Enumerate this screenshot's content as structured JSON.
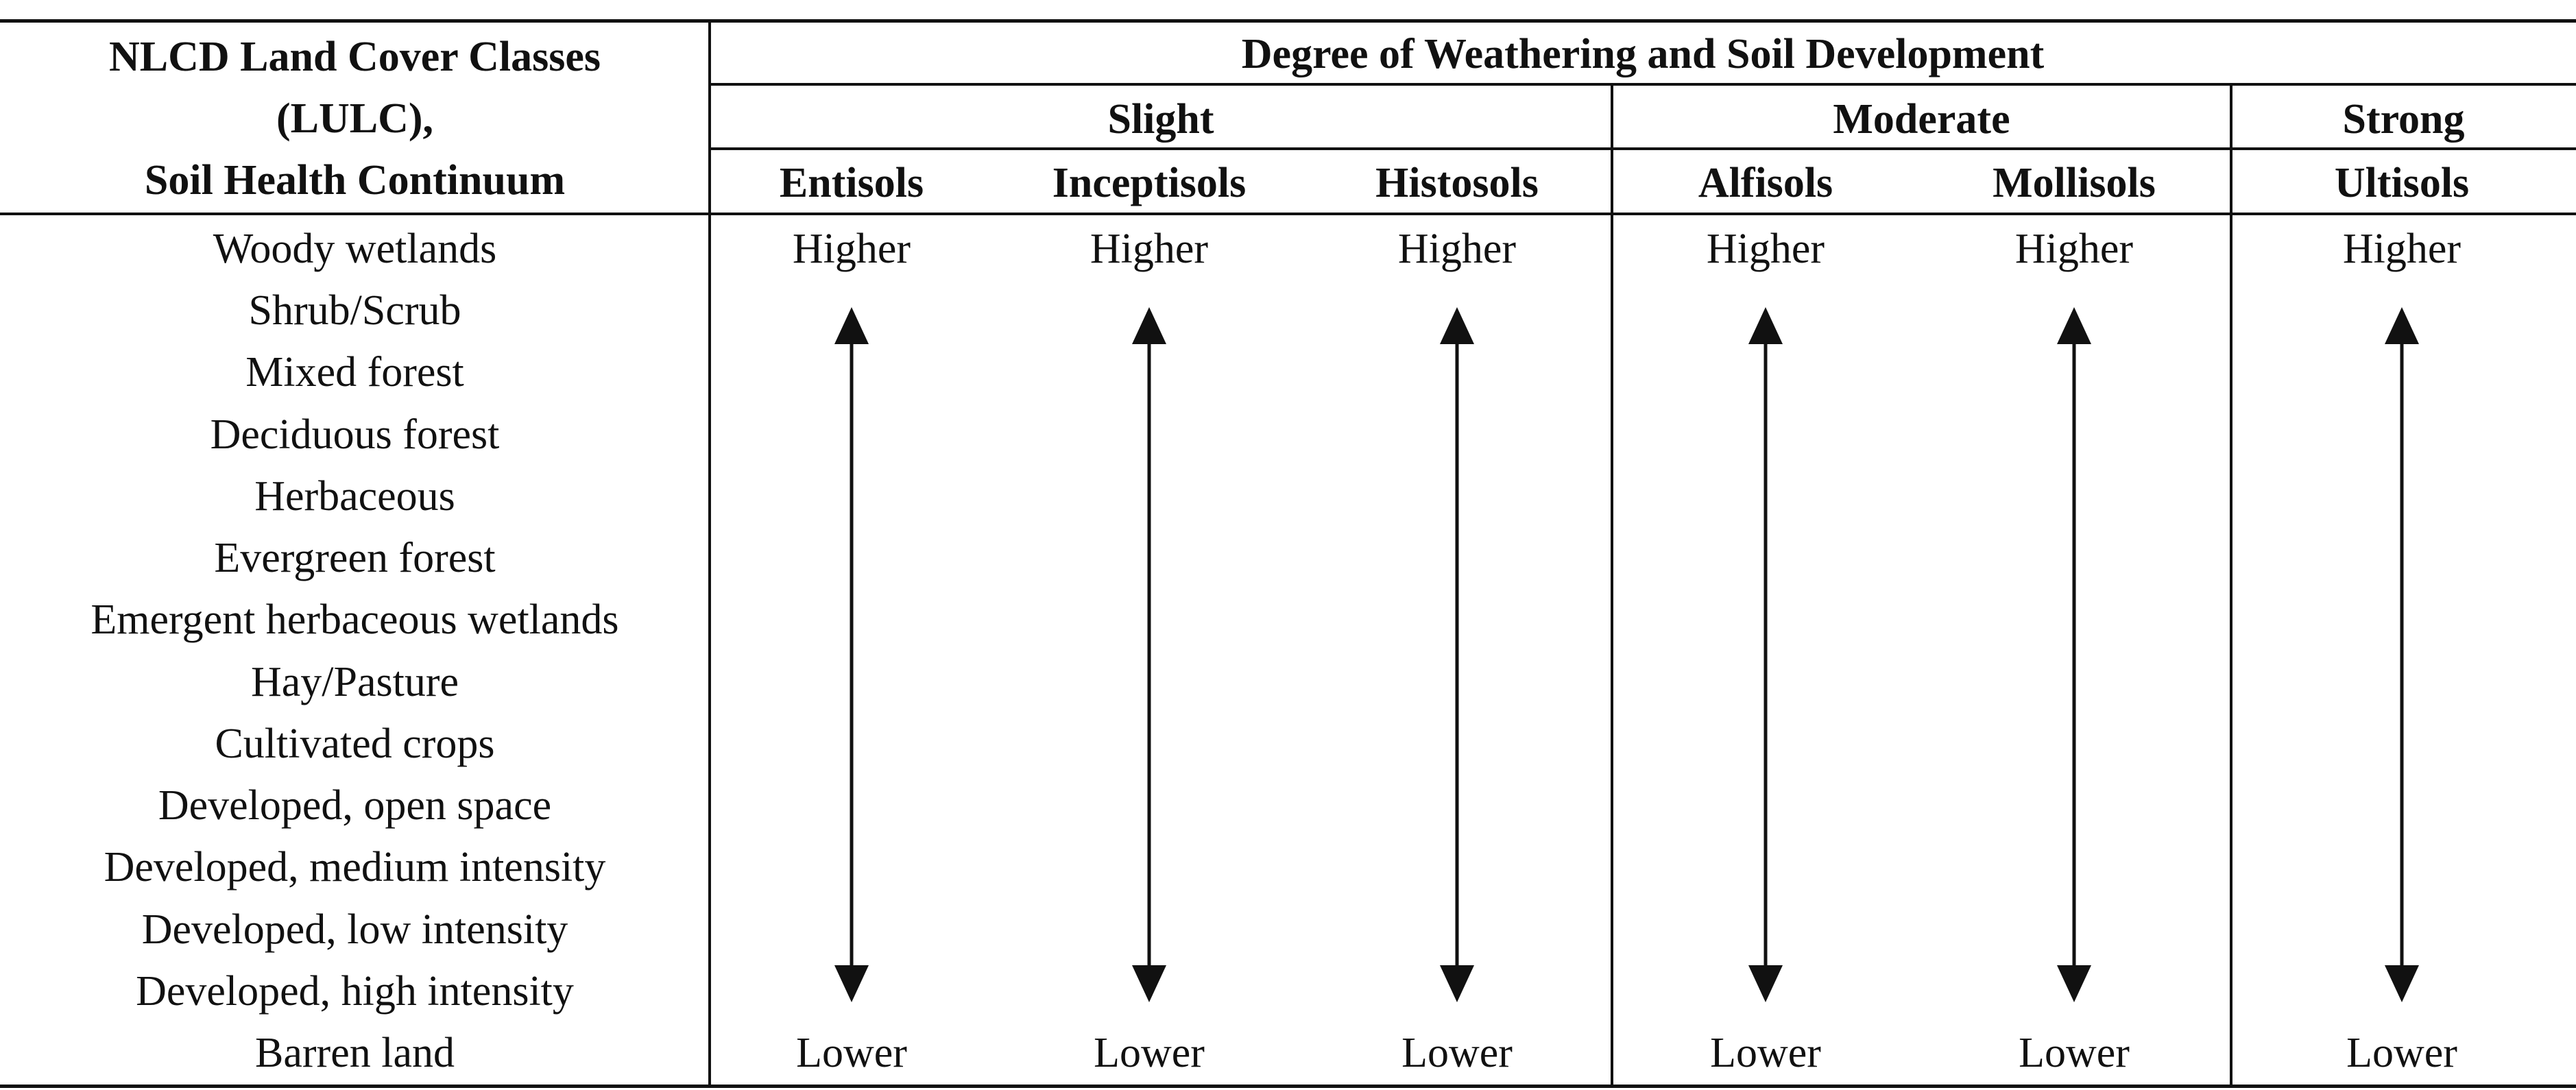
{
  "row_header": [
    "NLCD Land Cover Classes",
    "(LULC),",
    "Soil Health Continuum"
  ],
  "group_header": "Degree of Weathering and Soil Development",
  "degree_groups": [
    {
      "label": "Slight",
      "soils": [
        "Entisols",
        "Inceptisols",
        "Histosols"
      ]
    },
    {
      "label": "Moderate",
      "soils": [
        "Alfisols",
        "Mollisols"
      ]
    },
    {
      "label": "Strong",
      "soils": [
        "Ultisols"
      ]
    }
  ],
  "land_cover_classes": [
    "Woody wetlands",
    "Shrub/Scrub",
    "Mixed forest",
    "Deciduous forest",
    "Herbaceous",
    "Evergreen forest",
    "Emergent herbaceous wetlands",
    "Hay/Pasture",
    "Cultivated crops",
    "Developed, open space",
    "Developed, medium intensity",
    "Developed, low intensity",
    "Developed, high intensity",
    "Barren land"
  ],
  "continuum": {
    "top_label": "Higher",
    "bottom_label": "Lower"
  }
}
